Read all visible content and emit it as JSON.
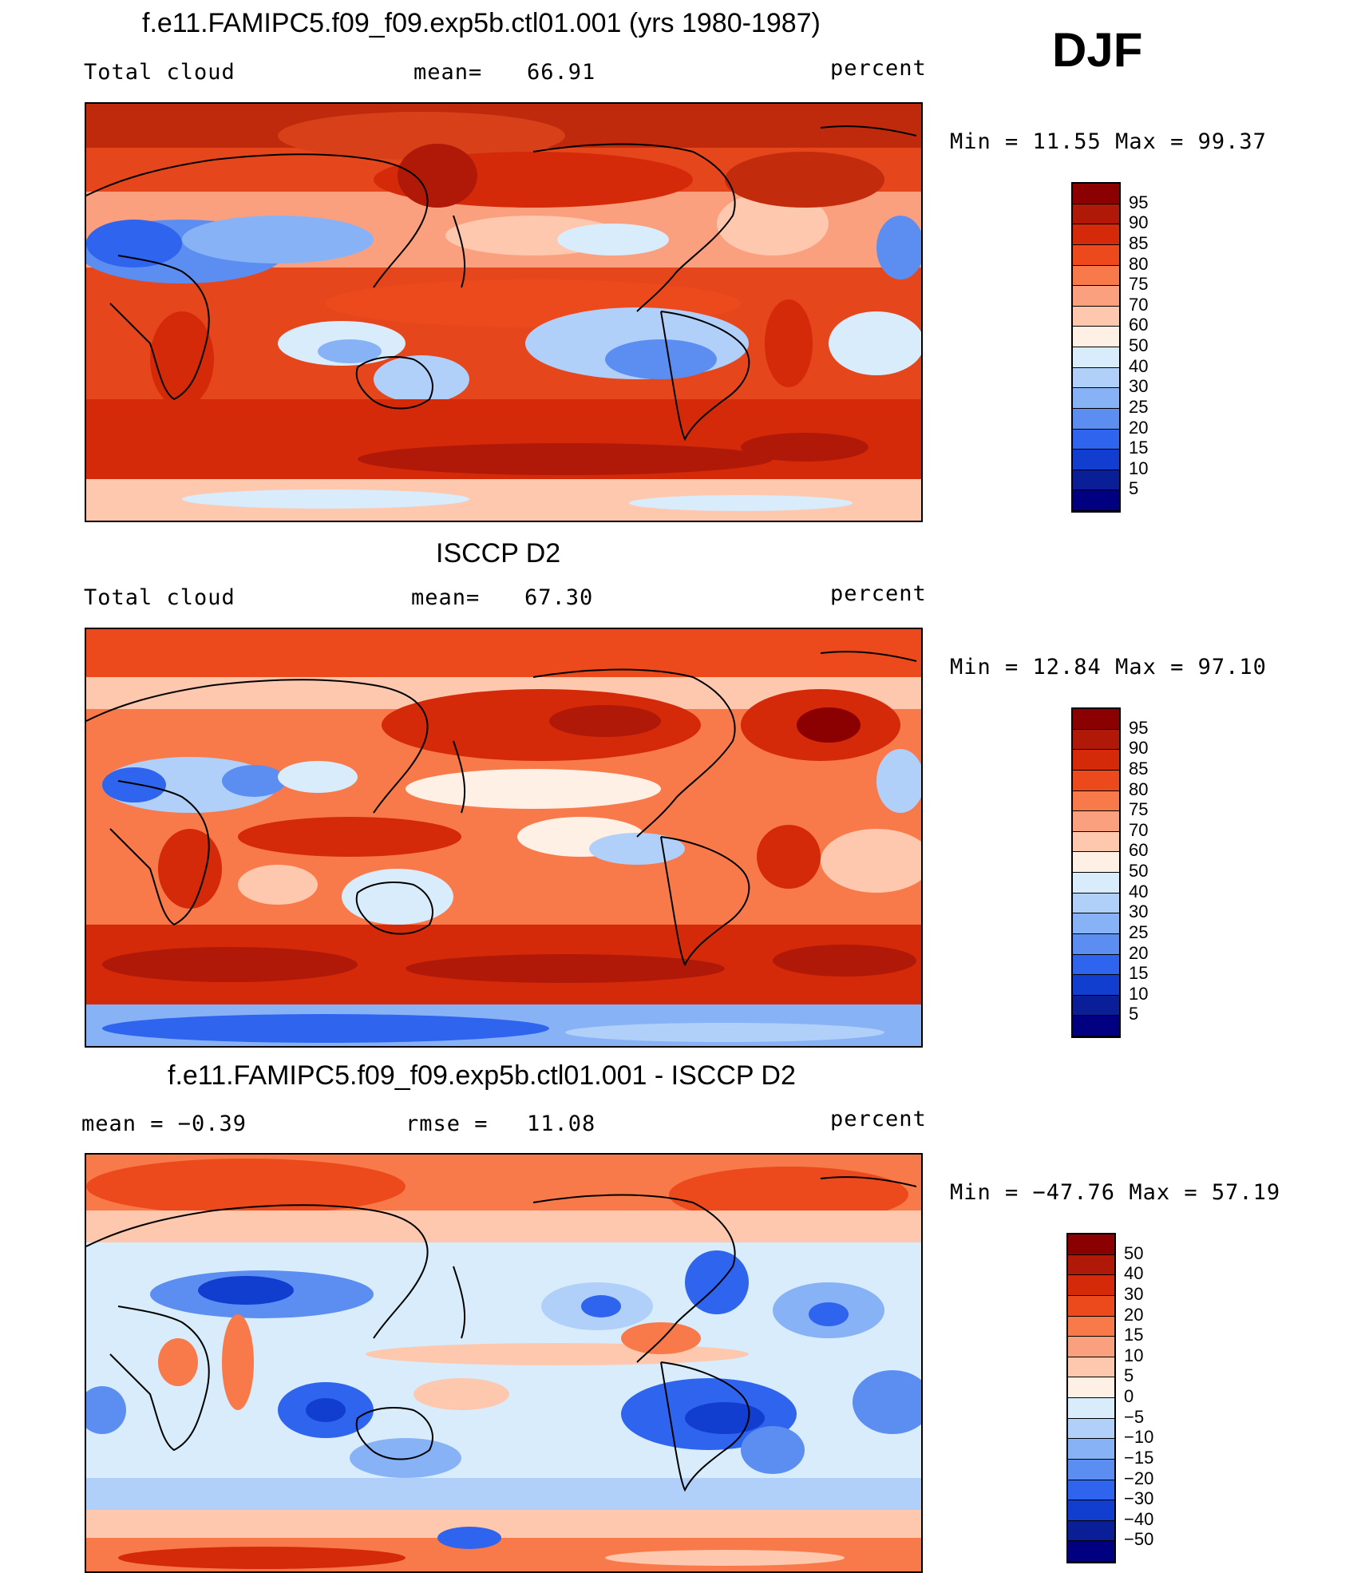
{
  "season": "DJF",
  "panels": [
    {
      "title": "f.e11.FAMIPC5.f09_f09.exp5b.ctl01.001 (yrs 1980-1987)",
      "left_label": "Total cloud",
      "stat_label": "mean=",
      "stat_value": "66.91",
      "units": "percent",
      "min_max": "Min =   11.55 Max =   99.37",
      "colorbar": {
        "labels": [
          "95",
          "90",
          "85",
          "80",
          "75",
          "70",
          "60",
          "50",
          "40",
          "30",
          "25",
          "20",
          "15",
          "10",
          "5"
        ],
        "colors": [
          "#8b0000",
          "#b01808",
          "#d42a0a",
          "#ec4a1c",
          "#f87a4a",
          "#fba07e",
          "#fdc8ae",
          "#fff0e6",
          "#d8ecfc",
          "#b0d0fa",
          "#88b2f6",
          "#5c8ef2",
          "#2e64ee",
          "#123ed0",
          "#0a1e98",
          "#000080"
        ]
      }
    },
    {
      "title": "ISCCP D2",
      "left_label": "Total cloud",
      "stat_label": "mean=",
      "stat_value": "67.30",
      "units": "percent",
      "min_max": "Min =   12.84 Max =   97.10",
      "colorbar": {
        "labels": [
          "95",
          "90",
          "85",
          "80",
          "75",
          "70",
          "60",
          "50",
          "40",
          "30",
          "25",
          "20",
          "15",
          "10",
          "5"
        ],
        "colors": [
          "#8b0000",
          "#b01808",
          "#d42a0a",
          "#ec4a1c",
          "#f87a4a",
          "#fba07e",
          "#fdc8ae",
          "#fff0e6",
          "#d8ecfc",
          "#b0d0fa",
          "#88b2f6",
          "#5c8ef2",
          "#2e64ee",
          "#123ed0",
          "#0a1e98",
          "#000080"
        ]
      }
    },
    {
      "title": "f.e11.FAMIPC5.f09_f09.exp5b.ctl01.001 - ISCCP D2",
      "left_label": "mean =   −0.39",
      "stat_label": "rmse =",
      "stat_value": "11.08",
      "units": "percent",
      "min_max": "Min = −47.76 Max =   57.19",
      "colorbar": {
        "labels": [
          "50",
          "40",
          "30",
          "20",
          "15",
          "10",
          "5",
          "0",
          "−5",
          "−10",
          "−15",
          "−20",
          "−30",
          "−40",
          "−50"
        ],
        "colors": [
          "#8b0000",
          "#b01808",
          "#d42a0a",
          "#ec4a1c",
          "#f87a4a",
          "#fba07e",
          "#fdc8ae",
          "#fff0e6",
          "#d8ecfc",
          "#b0d0fa",
          "#88b2f6",
          "#5c8ef2",
          "#2e64ee",
          "#123ed0",
          "#0a1e98",
          "#000080"
        ]
      }
    }
  ]
}
